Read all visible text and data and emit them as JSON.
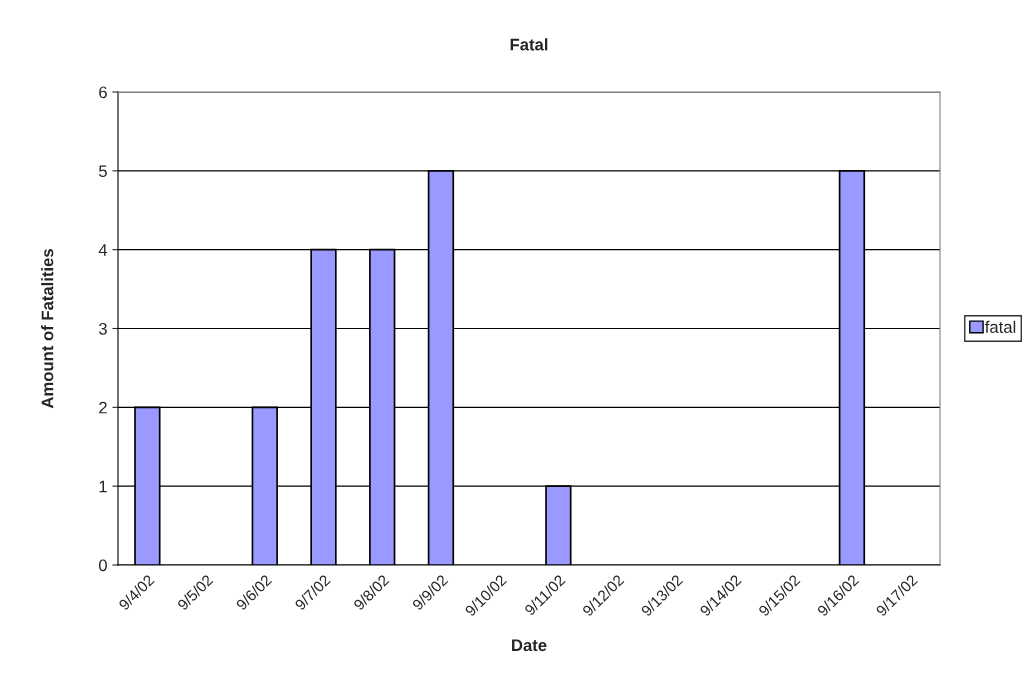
{
  "chart_data": {
    "type": "bar",
    "title": "Fatal",
    "xlabel": "Date",
    "ylabel": "Amount of Fatalities",
    "categories": [
      "9/4/02",
      "9/5/02",
      "9/6/02",
      "9/7/02",
      "9/8/02",
      "9/9/02",
      "9/10/02",
      "9/11/02",
      "9/12/02",
      "9/13/02",
      "9/14/02",
      "9/15/02",
      "9/16/02",
      "9/17/02"
    ],
    "series": [
      {
        "name": "fatal",
        "color": "#9999ff",
        "values": [
          2,
          0,
          2,
          4,
          4,
          5,
          0,
          1,
          0,
          0,
          0,
          0,
          5,
          0
        ]
      }
    ],
    "ylim": [
      0,
      6
    ],
    "yticks": [
      0,
      1,
      2,
      3,
      4,
      5,
      6
    ],
    "grid": "y",
    "legend": "right"
  }
}
